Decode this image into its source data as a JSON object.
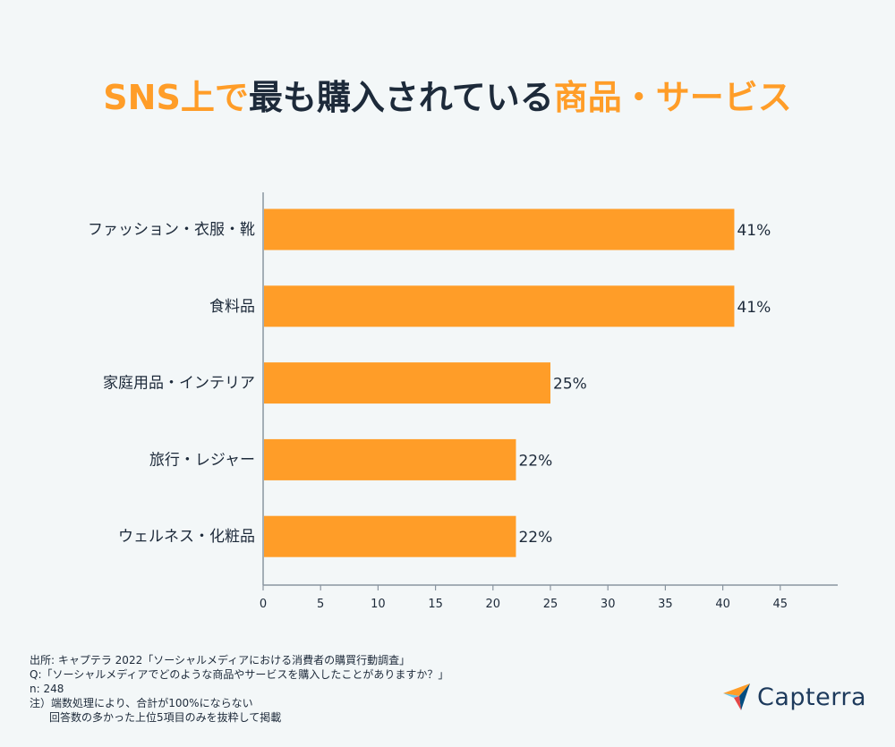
{
  "title": {
    "part1": "SNS上で",
    "part2": "最も購入されている",
    "part3": "商品・サービス"
  },
  "chart_data": {
    "type": "bar",
    "orientation": "horizontal",
    "categories": [
      "ファッション・衣服・靴",
      "食料品",
      "家庭用品・インテリア",
      "旅行・レジャー",
      "ウェルネス・化粧品"
    ],
    "values": [
      41,
      41,
      25,
      22,
      22
    ],
    "value_labels": [
      "41%",
      "41%",
      "25%",
      "22%",
      "22%"
    ],
    "xticks": [
      0,
      5,
      10,
      15,
      20,
      25,
      30,
      35,
      40,
      45
    ],
    "xlim": [
      0,
      50
    ],
    "bar_color": "#ff9d28",
    "grid": false
  },
  "notes": {
    "source": "出所: キャプテラ 2022「ソーシャルメディアにおける消費者の購買行動調査」",
    "question": "Q:「ソーシャルメディアでどのような商品やサービスを購入したことがありますか？」",
    "n": "n: 248",
    "note1": "注）端数処理により、合計が100%にならない",
    "note2": "回答数の多かった上位5項目のみを抜粋して掲載"
  },
  "logo": {
    "text": "Capterra",
    "icon": "capterra-arrow-icon"
  }
}
